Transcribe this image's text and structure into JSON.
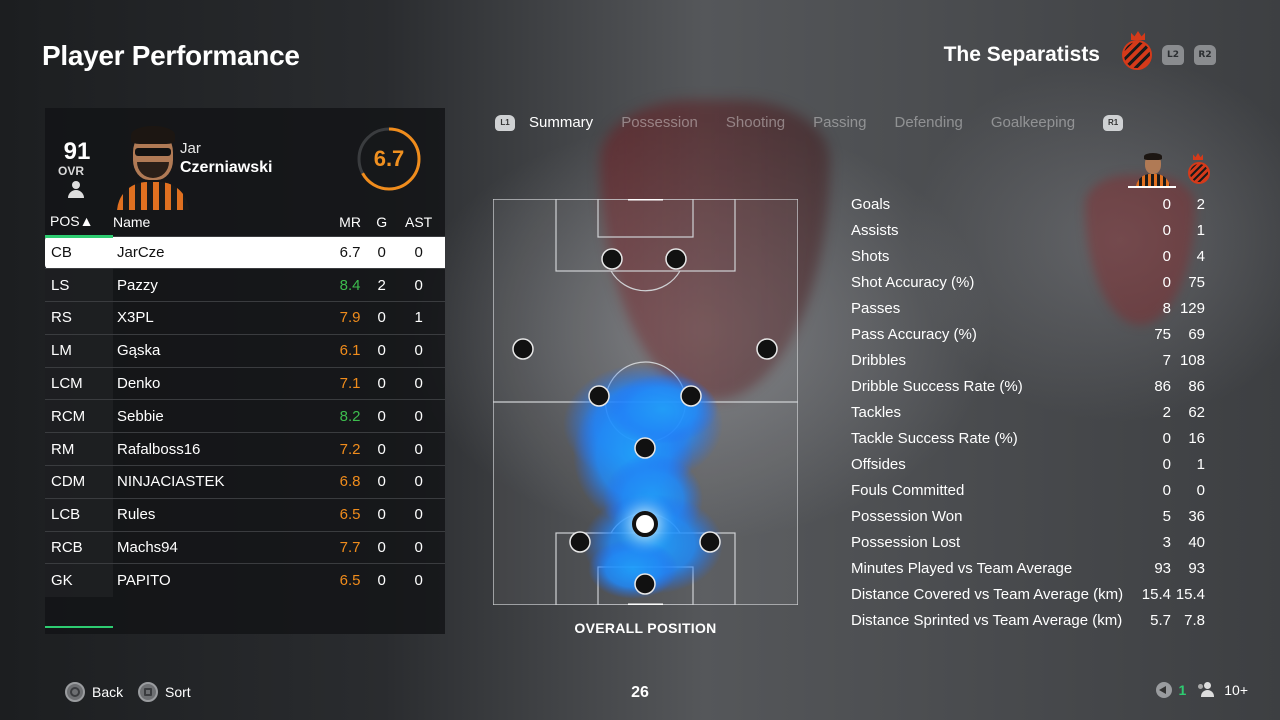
{
  "header": {
    "title": "Player Performance",
    "team_name": "The Separatists",
    "l2": "L2",
    "r2": "R2"
  },
  "player": {
    "ovr": "91",
    "ovr_label": "OVR",
    "first_name": "Jar",
    "last_name": "Czerniawski",
    "match_rating": "6.7",
    "match_rating_fraction": 0.67
  },
  "table": {
    "headers": {
      "pos": "POS▲",
      "name": "Name",
      "mr": "MR",
      "g": "G",
      "ast": "AST"
    },
    "rows": [
      {
        "pos": "CB",
        "name": "JarCze",
        "mr": "6.7",
        "g": "0",
        "ast": "0",
        "mr_color": "#111111"
      },
      {
        "pos": "LS",
        "name": "Pazzy",
        "mr": "8.4",
        "g": "2",
        "ast": "0",
        "mr_color": "#3dbd4e"
      },
      {
        "pos": "RS",
        "name": "X3PL",
        "mr": "7.9",
        "g": "0",
        "ast": "1",
        "mr_color": "#f08c1c"
      },
      {
        "pos": "LM",
        "name": "Gąska",
        "mr": "6.1",
        "g": "0",
        "ast": "0",
        "mr_color": "#f08c1c"
      },
      {
        "pos": "LCM",
        "name": "Denko",
        "mr": "7.1",
        "g": "0",
        "ast": "0",
        "mr_color": "#f08c1c"
      },
      {
        "pos": "RCM",
        "name": "Sebbie",
        "mr": "8.2",
        "g": "0",
        "ast": "0",
        "mr_color": "#3dbd4e"
      },
      {
        "pos": "RM",
        "name": "Rafalboss16",
        "mr": "7.2",
        "g": "0",
        "ast": "0",
        "mr_color": "#f08c1c"
      },
      {
        "pos": "CDM",
        "name": "NINJACIASTEK",
        "mr": "6.8",
        "g": "0",
        "ast": "0",
        "mr_color": "#f08c1c"
      },
      {
        "pos": "LCB",
        "name": "Rules",
        "mr": "6.5",
        "g": "0",
        "ast": "0",
        "mr_color": "#f08c1c"
      },
      {
        "pos": "RCB",
        "name": "Machs94",
        "mr": "7.7",
        "g": "0",
        "ast": "0",
        "mr_color": "#f08c1c"
      },
      {
        "pos": "GK",
        "name": "PAPITO",
        "mr": "6.5",
        "g": "0",
        "ast": "0",
        "mr_color": "#f08c1c"
      }
    ]
  },
  "tabs": {
    "l1": "L1",
    "r1": "R1",
    "items": [
      {
        "label": "Summary",
        "active": true
      },
      {
        "label": "Possession",
        "active": false
      },
      {
        "label": "Shooting",
        "active": false
      },
      {
        "label": "Passing",
        "active": false
      },
      {
        "label": "Defending",
        "active": false
      },
      {
        "label": "Goalkeeping",
        "active": false
      }
    ]
  },
  "pitch": {
    "caption": "OVERALL POSITION"
  },
  "stats": [
    {
      "label": "Goals",
      "player": "0",
      "team": "2"
    },
    {
      "label": "Assists",
      "player": "0",
      "team": "1"
    },
    {
      "label": "Shots",
      "player": "0",
      "team": "4"
    },
    {
      "label": "Shot Accuracy (%)",
      "player": "0",
      "team": "75"
    },
    {
      "label": "Passes",
      "player": "8",
      "team": "129"
    },
    {
      "label": "Pass Accuracy (%)",
      "player": "75",
      "team": "69"
    },
    {
      "label": "Dribbles",
      "player": "7",
      "team": "108"
    },
    {
      "label": "Dribble Success Rate (%)",
      "player": "86",
      "team": "86"
    },
    {
      "label": "Tackles",
      "player": "2",
      "team": "62"
    },
    {
      "label": "Tackle Success Rate (%)",
      "player": "0",
      "team": "16"
    },
    {
      "label": "Offsides",
      "player": "0",
      "team": "1"
    },
    {
      "label": "Fouls Committed",
      "player": "0",
      "team": "0"
    },
    {
      "label": "Possession Won",
      "player": "5",
      "team": "36"
    },
    {
      "label": "Possession Lost",
      "player": "3",
      "team": "40"
    },
    {
      "label": "Minutes Played vs Team Average",
      "player": "93",
      "team": "93"
    },
    {
      "label": "Distance Covered vs Team Average (km)",
      "player": "15.4",
      "team": "15.4"
    },
    {
      "label": "Distance Sprinted vs Team Average (km)",
      "player": "5.7",
      "team": "7.8"
    }
  ],
  "footer": {
    "back": "Back",
    "sort": "Sort",
    "page": "26",
    "voice_count": "1",
    "party": "10+"
  },
  "colors": {
    "accent_green": "#2ecc71",
    "rating_orange": "#f08c1c",
    "heat_blue": "#1e90ff"
  }
}
